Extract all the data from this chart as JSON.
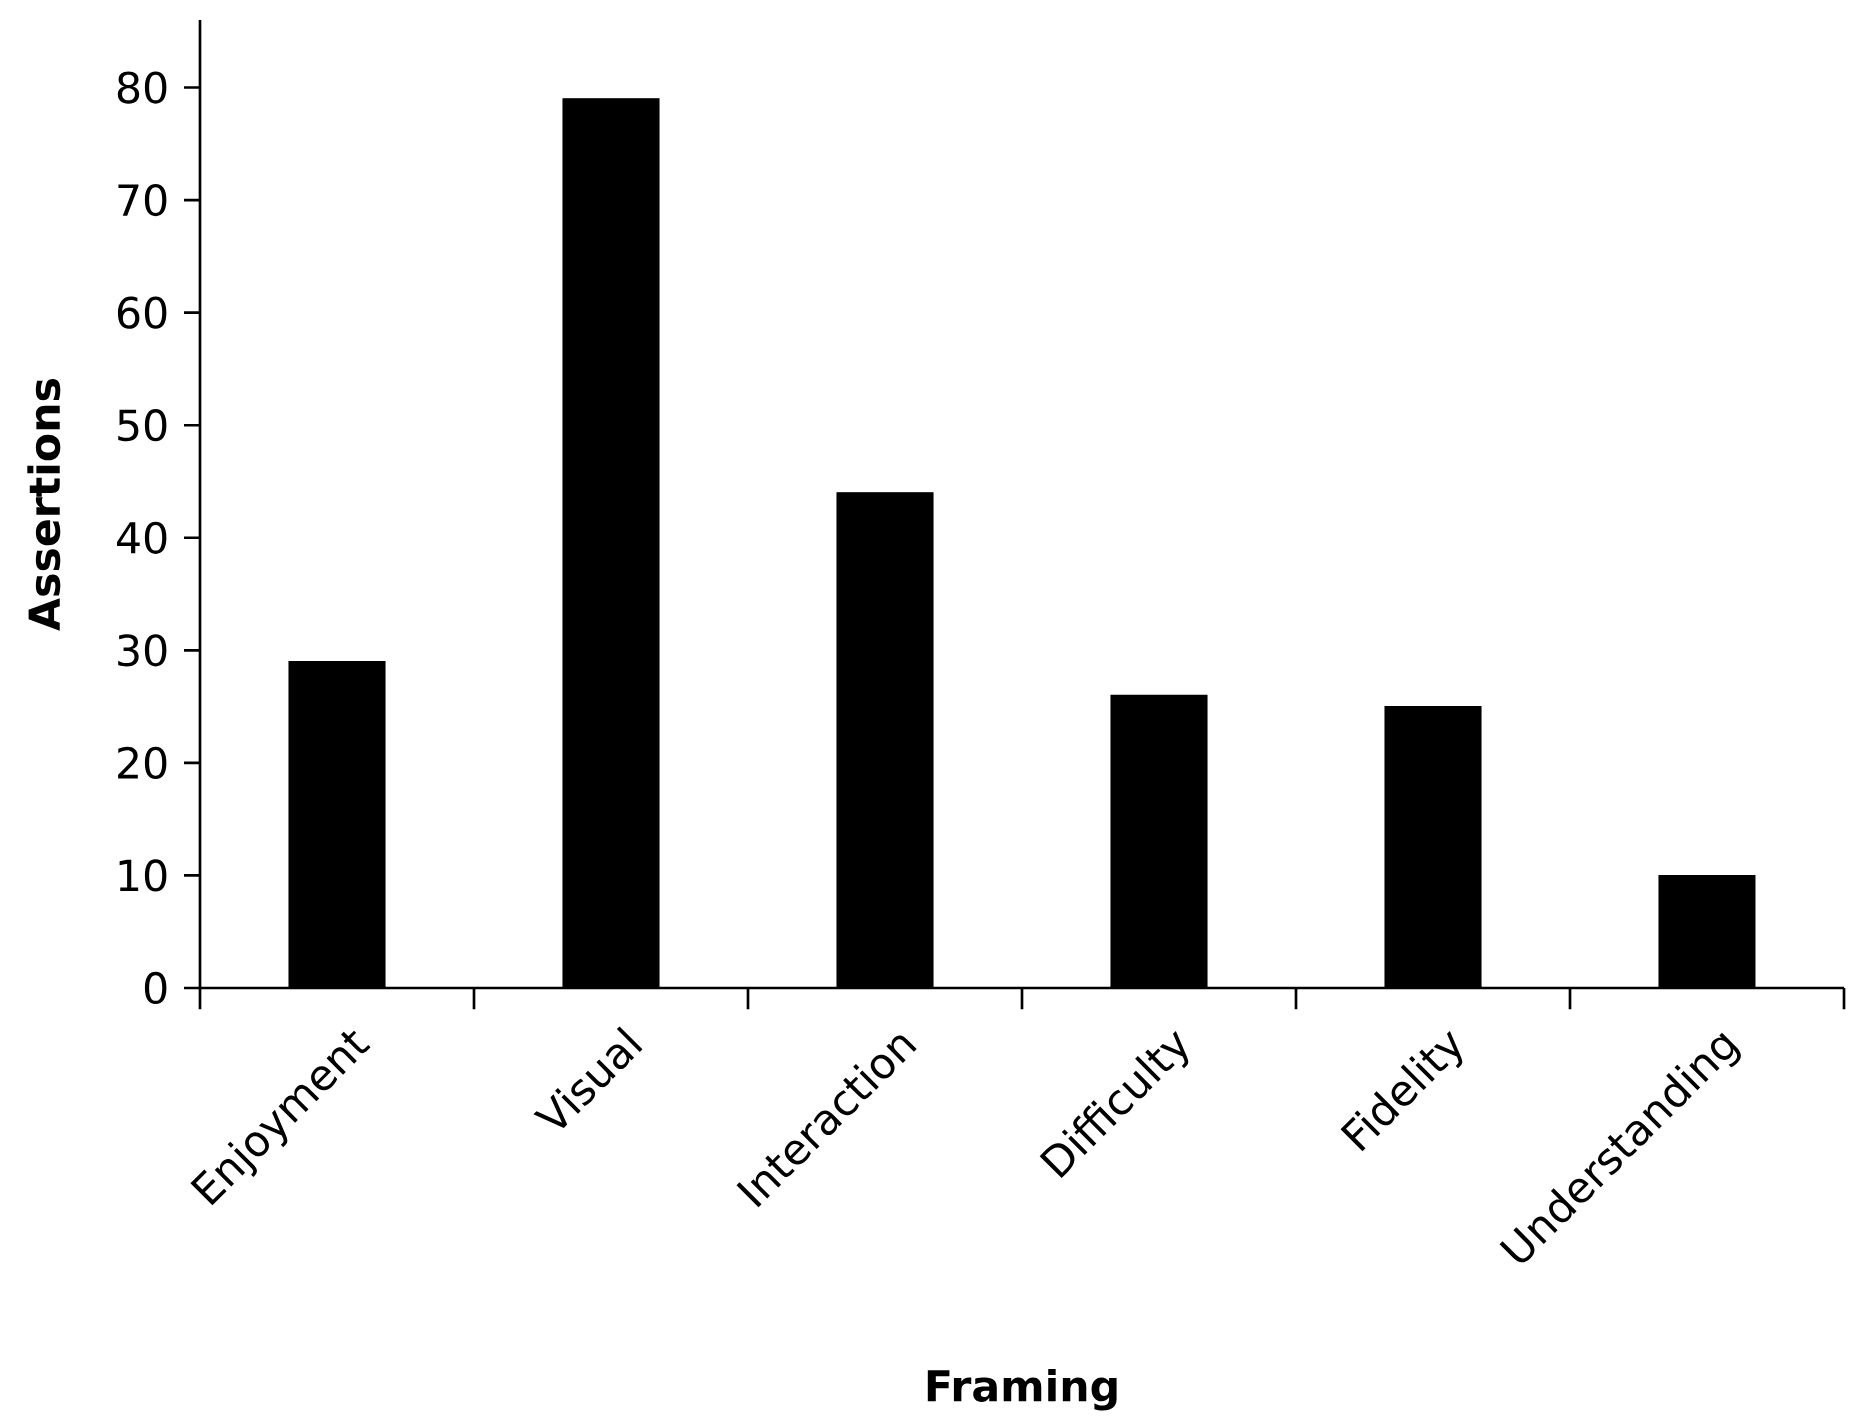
{
  "chart_data": {
    "type": "bar",
    "xlabel": "Framing",
    "ylabel": "Assertions",
    "categories": [
      "Enjoyment",
      "Visual",
      "Interaction",
      "Difficulty",
      "Fidelity",
      "Understanding"
    ],
    "values": [
      29,
      79,
      44,
      26,
      25,
      10
    ],
    "color": "#000000",
    "ylim": [
      0,
      86
    ],
    "yticks": [
      0,
      10,
      20,
      30,
      40,
      50,
      60,
      70,
      80
    ],
    "grid": false
  }
}
